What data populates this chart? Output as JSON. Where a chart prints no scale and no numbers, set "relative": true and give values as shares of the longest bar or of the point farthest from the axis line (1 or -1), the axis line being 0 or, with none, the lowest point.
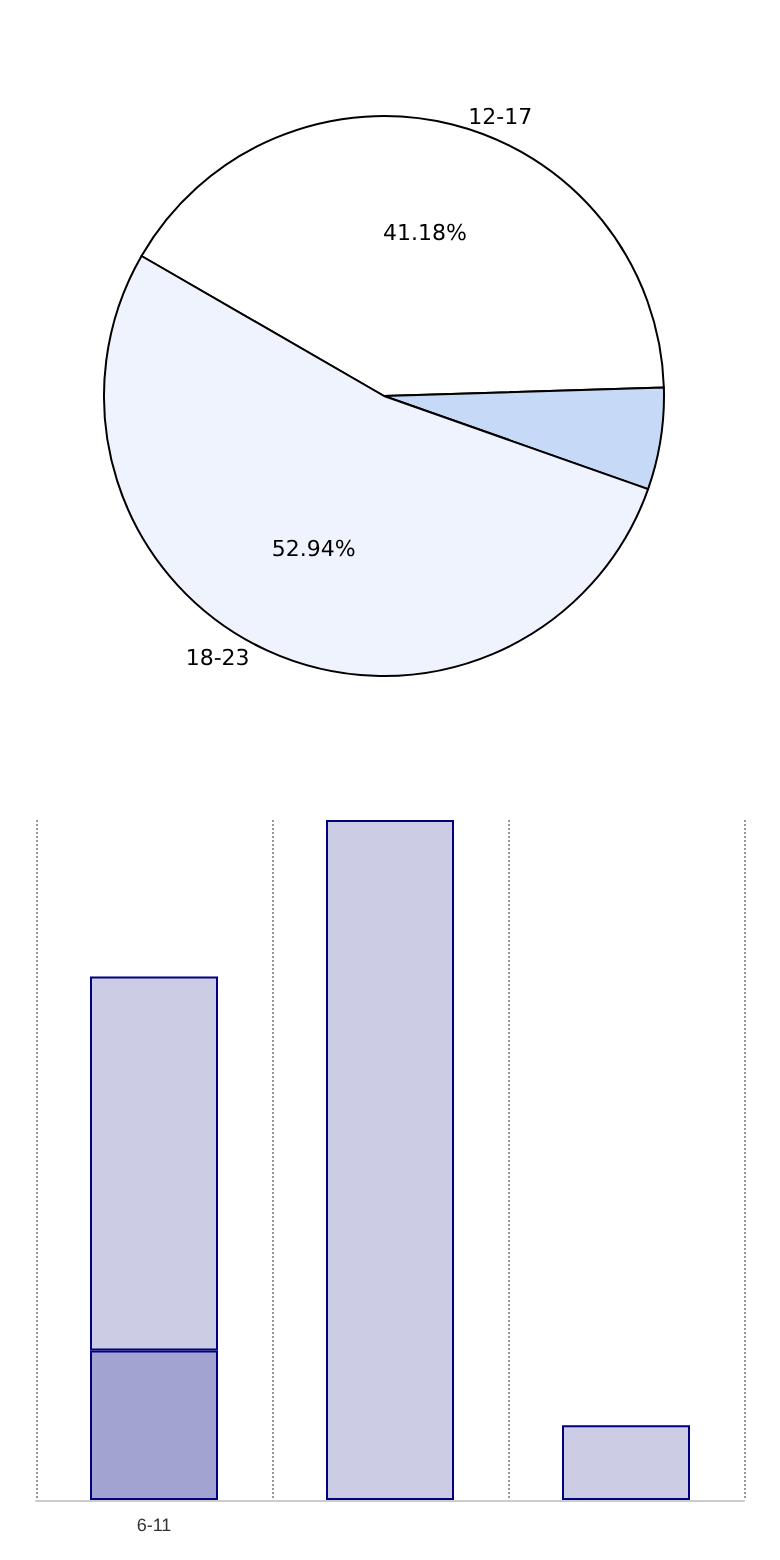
{
  "chart_data": [
    {
      "type": "pie",
      "categories": [
        "12-17",
        null,
        "18-23"
      ],
      "values": [
        41.18,
        5.88,
        52.94
      ],
      "colors": [
        "#ffffff",
        "#c6d9f7",
        "#eef3fd"
      ],
      "value_labels": [
        "41.18%",
        null,
        "52.94%"
      ],
      "legend": false
    },
    {
      "type": "bar",
      "relative": true,
      "stacked": true,
      "categories": [
        "6-11",
        null,
        null
      ],
      "grid": "x",
      "legend": false,
      "series": [
        {
          "color": "#a3a3d1",
          "values": [
            0.22,
            null,
            null
          ]
        },
        {
          "color": "#cccce5",
          "values": [
            0.55,
            1,
            0.11
          ]
        }
      ]
    }
  ]
}
